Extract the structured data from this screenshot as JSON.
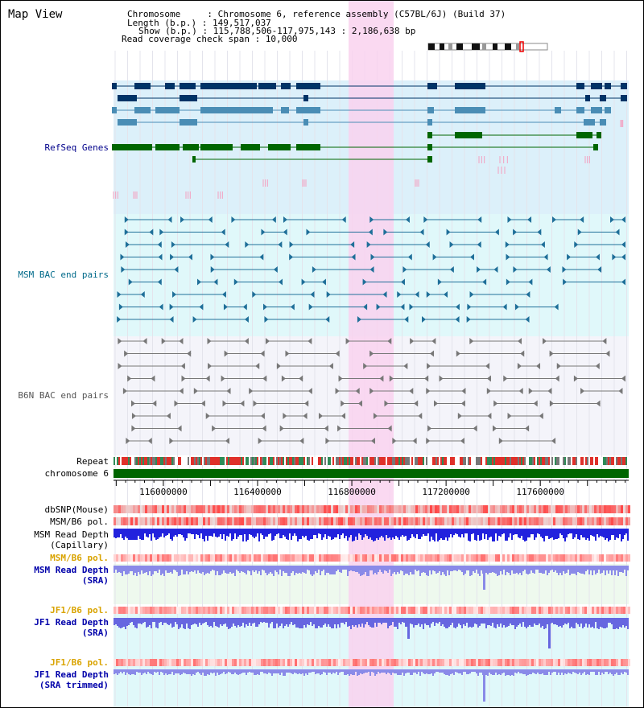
{
  "app": {
    "title": "Map View"
  },
  "info": {
    "chromosome": "Chromosome     : Chromosome 6, reference assembly (C57BL/6J) (Build 37)",
    "length": "Length (b.p.) : 149,517,037",
    "show": "Show (b.p.) : 115,788,506-117,975,143 : 2,186,638 bp",
    "coverage": "Read coverage check span : 10,000"
  },
  "tracks": {
    "refseq": {
      "label": "RefSeq Genes",
      "color": "#00008b"
    },
    "msm_bac": {
      "label": "MSM BAC end pairs",
      "color": "#006a8a"
    },
    "b6n_bac": {
      "label": "B6N BAC end pairs",
      "color": "#555555"
    },
    "repeat": {
      "label": "Repeat"
    },
    "chromosome": {
      "label": "chromosome 6"
    },
    "dbsnp": {
      "label": "dbSNP(Mouse)",
      "color": "#000000"
    },
    "msm_b6_pol_1": {
      "label": "MSM/B6 pol.",
      "color": "#000000"
    },
    "msm_read_depth_cap": {
      "line1": "MSM Read Depth",
      "line2": "(Capillary)",
      "color": "#000000"
    },
    "msm_b6_pol_2": {
      "label": "MSM/B6 pol.",
      "color": "#d9a300"
    },
    "msm_read_depth_sra": {
      "line1": "MSM Read Depth",
      "line2": "(SRA)",
      "color": "#0000aa"
    },
    "jf1_b6_pol_1": {
      "label": "JF1/B6 pol.",
      "color": "#d9a300"
    },
    "jf1_read_depth_sra": {
      "line1": "JF1 Read Depth",
      "line2": "(SRA)",
      "color": "#0000aa"
    },
    "jf1_b6_pol_2": {
      "label": "JF1/B6 pol.",
      "color": "#d9a300"
    },
    "jf1_read_depth_trim": {
      "line1": "JF1 Read Depth",
      "line2": "(SRA trimmed)",
      "color": "#0000aa"
    }
  },
  "axis": {
    "ticks": [
      "116000000",
      "116400000",
      "116800000",
      "117200000",
      "117600000"
    ]
  },
  "colors": {
    "highlight": "#f9d2ee",
    "refseq_bg": "#dcf0fa",
    "msm_bg": "#e0f8fa",
    "b6n_bg": "#f4f4fa",
    "gene_dark": "#003366",
    "gene_mid": "#4a8db5",
    "gene_green": "#006600",
    "chromosome_green": "#006600"
  }
}
